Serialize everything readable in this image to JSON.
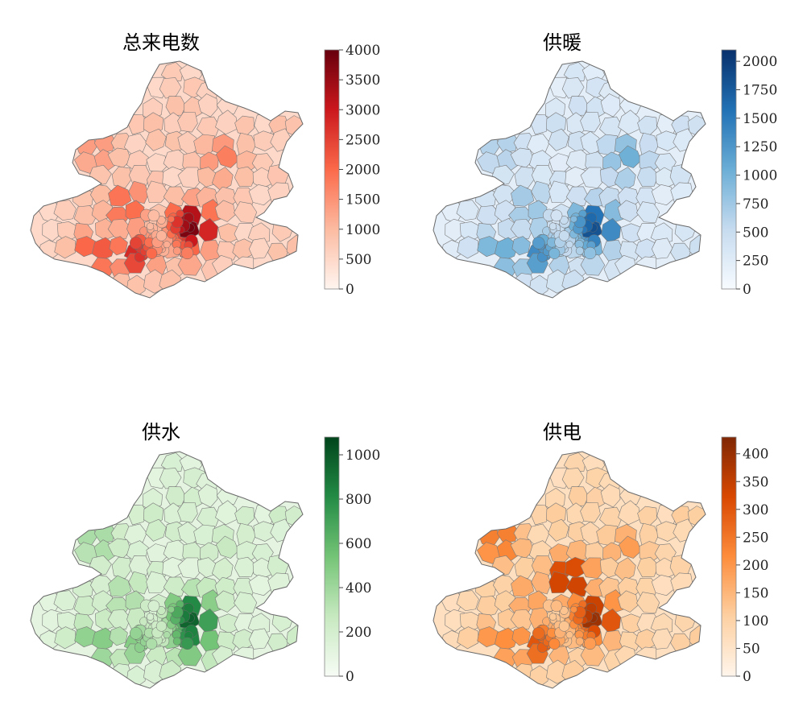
{
  "maps": [
    {
      "id": "total",
      "title": "总来电数",
      "colormap": [
        "#fff5f0",
        "#fcbba1",
        "#fb6a4a",
        "#cb181d",
        "#67000d"
      ],
      "scale": {
        "min": 0,
        "max": 4000,
        "ticks": [
          0,
          500,
          1000,
          1500,
          2000,
          2500,
          3000,
          3500,
          4000
        ]
      },
      "base_level": 0.12,
      "hotspots": [
        {
          "near": "west-cluster",
          "level": 0.55
        },
        {
          "near": "south-west",
          "level": 0.62
        },
        {
          "near": "south-center",
          "level": 0.7
        },
        {
          "near": "east-center",
          "level": 0.98
        },
        {
          "near": "south-east",
          "level": 0.5
        },
        {
          "near": "north-west",
          "level": 0.4
        },
        {
          "near": "north-east",
          "level": 0.45
        }
      ]
    },
    {
      "id": "heating",
      "title": "供暖",
      "colormap": [
        "#f7fbff",
        "#c6dbef",
        "#6baed6",
        "#2171b5",
        "#08306b"
      ],
      "scale": {
        "min": 0,
        "max": 2100,
        "ticks": [
          0,
          250,
          500,
          750,
          1000,
          1250,
          1500,
          1750,
          2000
        ]
      },
      "base_level": 0.1,
      "hotspots": [
        {
          "near": "west-cluster",
          "level": 0.4
        },
        {
          "near": "south-west",
          "level": 0.55
        },
        {
          "near": "south-center",
          "level": 0.65
        },
        {
          "near": "east-center",
          "level": 0.9
        },
        {
          "near": "south-east",
          "level": 0.45
        },
        {
          "near": "north-west",
          "level": 0.35
        },
        {
          "near": "north-east",
          "level": 0.5
        }
      ]
    },
    {
      "id": "water",
      "title": "供水",
      "colormap": [
        "#f7fcf5",
        "#c7e9c0",
        "#74c476",
        "#238b45",
        "#00441b"
      ],
      "scale": {
        "min": 0,
        "max": 1080,
        "ticks": [
          0,
          200,
          400,
          600,
          800,
          1000
        ]
      },
      "base_level": 0.1,
      "hotspots": [
        {
          "near": "west-cluster",
          "level": 0.35
        },
        {
          "near": "south-west",
          "level": 0.5
        },
        {
          "near": "south-center",
          "level": 0.45
        },
        {
          "near": "east-center",
          "level": 0.92
        },
        {
          "near": "south-east",
          "level": 0.8
        },
        {
          "near": "north-west",
          "level": 0.4
        },
        {
          "near": "north-east",
          "level": 0.25
        }
      ]
    },
    {
      "id": "electricity",
      "title": "供电",
      "colormap": [
        "#fff5eb",
        "#fdd0a2",
        "#fd8d3c",
        "#d94801",
        "#7f2704"
      ],
      "scale": {
        "min": 0,
        "max": 430,
        "ticks": [
          0,
          50,
          100,
          150,
          200,
          250,
          300,
          350,
          400
        ]
      },
      "base_level": 0.15,
      "hotspots": [
        {
          "near": "west-cluster",
          "level": 0.45
        },
        {
          "near": "south-west",
          "level": 0.55
        },
        {
          "near": "south-center",
          "level": 0.7
        },
        {
          "near": "east-center",
          "level": 0.95
        },
        {
          "near": "south-east",
          "level": 0.5
        },
        {
          "near": "north-west",
          "level": 0.65
        },
        {
          "near": "north-east",
          "level": 0.45
        },
        {
          "near": "north-center",
          "level": 0.92
        }
      ]
    }
  ]
}
